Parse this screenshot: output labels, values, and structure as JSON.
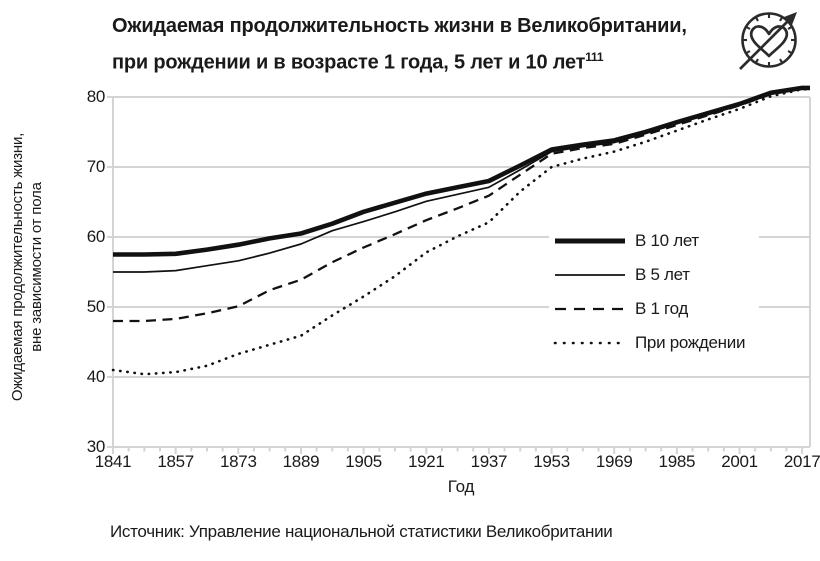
{
  "header": {
    "title_line1": "Ожидаемая продолжительность жизни в Великобритании,",
    "title_line2": "при рождении и в возрасте 1 года, 5 лет и 10 лет",
    "title_superscript": "111",
    "icon": "heart-clock-arrow-icon"
  },
  "chart_data": {
    "type": "line",
    "title": "Ожидаемая продолжительность жизни в Великобритании, при рождении и в возрасте 1 года, 5 лет и 10 лет",
    "xlabel": "Год",
    "ylabel_line1": "Ожидаемая продолжительность жизни,",
    "ylabel_line2": "вне зависимости от пола",
    "x_range": [
      1841,
      2019
    ],
    "ylim": [
      30,
      80
    ],
    "yticks": [
      30,
      40,
      50,
      60,
      70,
      80
    ],
    "xticks": [
      1841,
      1857,
      1873,
      1889,
      1905,
      1921,
      1937,
      1953,
      1969,
      1985,
      2001,
      2017
    ],
    "minor_xtick_step": 4,
    "grid": "horizontal-only",
    "legend_position": "inside-right",
    "line_color": "#111111",
    "grid_color": "#d4d4d4",
    "text_color": "#1a1a1a",
    "x": [
      1841,
      1849,
      1857,
      1865,
      1873,
      1881,
      1889,
      1897,
      1905,
      1913,
      1921,
      1929,
      1937,
      1945,
      1953,
      1961,
      1969,
      1977,
      1985,
      1993,
      2001,
      2009,
      2017,
      2019
    ],
    "series": [
      {
        "name": "В 10 лет",
        "style": "solid-thick",
        "values": [
          57.5,
          57.5,
          57.6,
          58.2,
          58.9,
          59.8,
          60.5,
          61.9,
          63.6,
          64.9,
          66.2,
          67.1,
          68.0,
          70.2,
          72.5,
          73.2,
          73.8,
          75.0,
          76.4,
          77.7,
          79.0,
          80.6,
          81.3,
          81.3
        ]
      },
      {
        "name": "В 5 лет",
        "style": "solid-thin",
        "values": [
          55.0,
          55.0,
          55.2,
          55.9,
          56.6,
          57.7,
          59.0,
          60.9,
          62.2,
          63.6,
          65.1,
          66.1,
          67.1,
          69.6,
          72.2,
          72.9,
          73.5,
          74.8,
          76.2,
          77.5,
          78.9,
          80.5,
          81.2,
          81.2
        ]
      },
      {
        "name": "В 1 год",
        "style": "dashed",
        "values": [
          48.0,
          48.0,
          48.3,
          49.1,
          50.1,
          52.4,
          53.9,
          56.4,
          58.5,
          60.4,
          62.4,
          64.1,
          65.9,
          68.9,
          71.9,
          72.7,
          73.3,
          74.6,
          76.0,
          77.4,
          78.8,
          80.4,
          81.2,
          81.2
        ]
      },
      {
        "name": "При рождении",
        "style": "dotted",
        "values": [
          41.0,
          40.4,
          40.7,
          41.6,
          43.3,
          44.6,
          45.9,
          48.8,
          51.5,
          54.4,
          57.8,
          60.1,
          62.1,
          66.5,
          70.0,
          71.2,
          72.2,
          73.6,
          75.2,
          76.8,
          78.3,
          80.1,
          81.1,
          81.1
        ]
      }
    ]
  },
  "footer": {
    "source": "Источник: Управление национальной статистики Великобритании"
  }
}
